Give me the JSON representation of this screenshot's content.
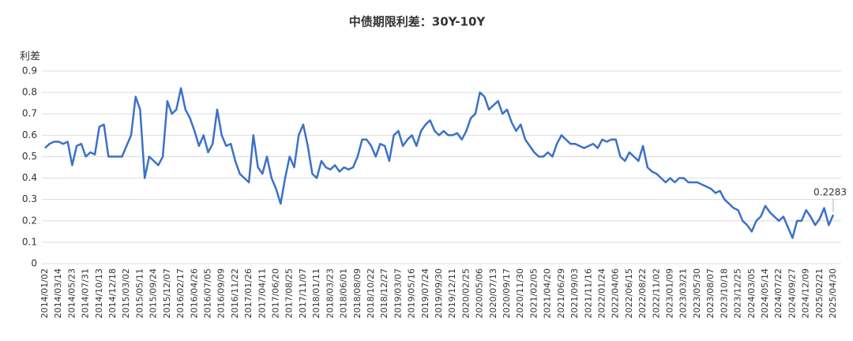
{
  "chart_data": {
    "type": "line",
    "title": "中债期限利差：30Y-10Y",
    "y_label": "利差",
    "categories": [
      "2014/01/02",
      null,
      null,
      "2014/03/14",
      null,
      null,
      "2014/05/23",
      null,
      null,
      "2014/07/31",
      null,
      null,
      "2014/10/13",
      null,
      null,
      "2014/12/18",
      null,
      null,
      "2015/03/02",
      null,
      null,
      "2015/05/11",
      null,
      null,
      "2015/09/24",
      null,
      null,
      "2015/12/07",
      null,
      null,
      "2016/02/17",
      null,
      null,
      "2016/04/26",
      null,
      null,
      "2016/07/05",
      null,
      null,
      "2016/09/09",
      null,
      null,
      "2016/11/22",
      null,
      null,
      "2017/01/26",
      null,
      null,
      "2017/04/11",
      null,
      null,
      "2017/06/20",
      null,
      null,
      "2017/08/25",
      null,
      null,
      "2017/11/07",
      null,
      null,
      "2018/01/11",
      null,
      null,
      "2018/03/23",
      null,
      null,
      "2018/06/01",
      null,
      null,
      "2018/08/09",
      null,
      null,
      "2018/10/22",
      null,
      null,
      "2018/12/27",
      null,
      null,
      "2019/03/07",
      null,
      null,
      "2019/05/16",
      null,
      null,
      "2019/07/24",
      null,
      null,
      "2019/09/30",
      null,
      null,
      "2019/12/11",
      null,
      null,
      "2020/02/25",
      null,
      null,
      "2020/05/06",
      null,
      null,
      "2020/07/13",
      null,
      null,
      "2020/09/17",
      null,
      null,
      "2020/11/30",
      null,
      null,
      "2021/02/05",
      null,
      null,
      "2021/04/20",
      null,
      null,
      "2021/06/29",
      null,
      null,
      "2021/09/03",
      null,
      null,
      "2021/11/16",
      null,
      null,
      "2022/01/24",
      null,
      null,
      "2022/04/06",
      null,
      null,
      "2022/06/15",
      null,
      null,
      "2022/08/22",
      null,
      null,
      "2022/11/02",
      null,
      null,
      "2023/01/09",
      null,
      null,
      "2023/03/21",
      null,
      null,
      "2023/05/30",
      null,
      null,
      "2023/08/07",
      null,
      null,
      "2023/10/18",
      null,
      null,
      "2023/12/25",
      null,
      null,
      "2024/03/05",
      null,
      null,
      "2024/05/14",
      null,
      null,
      "2024/07/22",
      null,
      null,
      "2024/09/27",
      null,
      null,
      "2024/12/09",
      null,
      null,
      "2025/02/21",
      null,
      null,
      "2025/04/30"
    ],
    "values": [
      0.54,
      0.56,
      0.57,
      0.57,
      0.56,
      0.57,
      0.46,
      0.55,
      0.56,
      0.5,
      0.52,
      0.51,
      0.64,
      0.65,
      0.5,
      0.5,
      0.5,
      0.5,
      0.55,
      0.6,
      0.78,
      0.72,
      0.4,
      0.5,
      0.48,
      0.46,
      0.5,
      0.76,
      0.7,
      0.72,
      0.82,
      0.72,
      0.68,
      0.62,
      0.55,
      0.6,
      0.52,
      0.56,
      0.72,
      0.6,
      0.55,
      0.56,
      0.48,
      0.42,
      0.4,
      0.38,
      0.6,
      0.45,
      0.42,
      0.5,
      0.4,
      0.35,
      0.28,
      0.4,
      0.5,
      0.45,
      0.6,
      0.65,
      0.55,
      0.42,
      0.4,
      0.48,
      0.45,
      0.44,
      0.46,
      0.43,
      0.45,
      0.44,
      0.45,
      0.5,
      0.58,
      0.58,
      0.55,
      0.5,
      0.56,
      0.55,
      0.48,
      0.6,
      0.62,
      0.55,
      0.58,
      0.6,
      0.55,
      0.62,
      0.65,
      0.67,
      0.62,
      0.6,
      0.62,
      0.6,
      0.6,
      0.61,
      0.58,
      0.62,
      0.68,
      0.7,
      0.8,
      0.78,
      0.72,
      0.74,
      0.76,
      0.7,
      0.72,
      0.66,
      0.62,
      0.65,
      0.58,
      0.55,
      0.52,
      0.5,
      0.5,
      0.52,
      0.5,
      0.56,
      0.6,
      0.58,
      0.56,
      0.56,
      0.55,
      0.54,
      0.55,
      0.56,
      0.54,
      0.58,
      0.57,
      0.58,
      0.58,
      0.5,
      0.48,
      0.52,
      0.5,
      0.48,
      0.55,
      0.45,
      0.43,
      0.42,
      0.4,
      0.38,
      0.4,
      0.38,
      0.4,
      0.4,
      0.38,
      0.38,
      0.38,
      0.37,
      0.36,
      0.35,
      0.33,
      0.34,
      0.3,
      0.28,
      0.26,
      0.25,
      0.2,
      0.18,
      0.15,
      0.2,
      0.22,
      0.27,
      0.24,
      0.22,
      0.2,
      0.22,
      0.17,
      0.12,
      0.2,
      0.2,
      0.25,
      0.22,
      0.18,
      0.21,
      0.26,
      0.18,
      0.2283
    ],
    "color": "#3b71c9",
    "ylim": [
      0,
      0.9
    ],
    "yticks": [
      0,
      0.1,
      0.2,
      0.3,
      0.4,
      0.5,
      0.6,
      0.7,
      0.8,
      0.9
    ],
    "grid": true
  }
}
